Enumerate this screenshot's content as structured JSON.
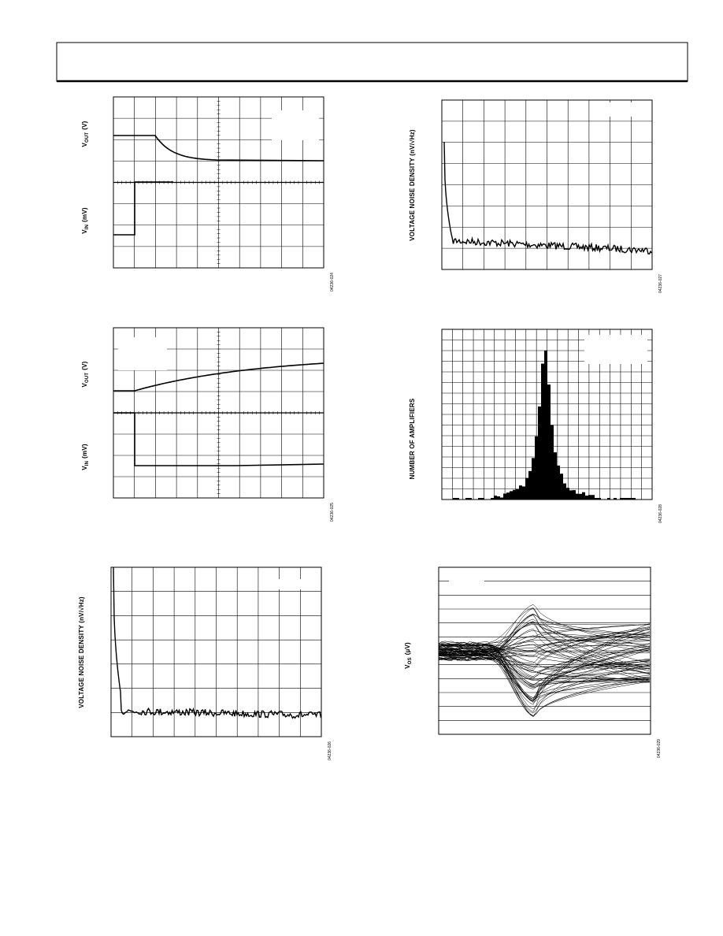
{
  "figures": [
    {
      "y_labels": [
        {
          "main": "V",
          "sub": "OUT",
          "unit": "(V)"
        },
        {
          "main": "V",
          "sub": "IN",
          "unit": "(mV)"
        }
      ],
      "code": "04236-024"
    },
    {
      "y_labels": [
        {
          "text": "VOLTAGE NOISE DENSITY (nV/√Hz)"
        }
      ],
      "code": "04236-027"
    },
    {
      "y_labels": [
        {
          "main": "V",
          "sub": "OUT",
          "unit": "(V)"
        },
        {
          "main": "V",
          "sub": "IN",
          "unit": "(mV)"
        }
      ],
      "code": "04236-025"
    },
    {
      "y_labels": [
        {
          "text": "NUMBER OF AMPLIFIERS"
        }
      ],
      "code": "04236-028"
    },
    {
      "y_labels": [
        {
          "text": "VOLTAGE NOISE DENSITY (nV/√Hz)"
        }
      ],
      "code": "04236-026"
    },
    {
      "y_labels": [
        {
          "main": "V",
          "sub": "OS",
          "unit": "(µV)"
        }
      ],
      "code": "04236-029"
    }
  ]
}
